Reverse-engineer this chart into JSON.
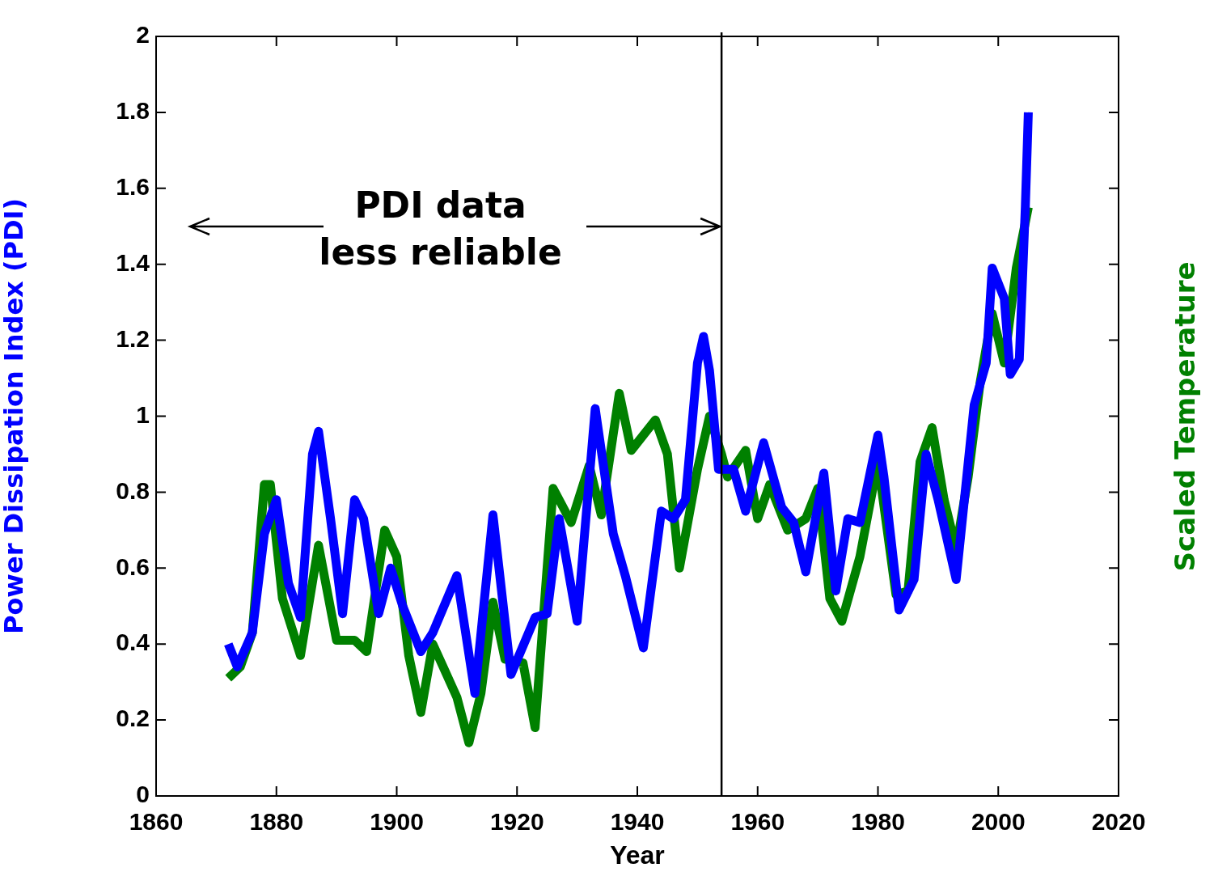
{
  "chart_data": {
    "type": "line",
    "xlabel": "Year",
    "ylabel": "Power Dissipation Index (PDI)",
    "y2label": "Scaled Temperature",
    "xlim": [
      1860,
      2020
    ],
    "xticks": [
      1860,
      1880,
      1900,
      1920,
      1940,
      1960,
      1980,
      2000,
      2020
    ],
    "ylim": [
      0,
      2
    ],
    "yticks": [
      0,
      0.2,
      0.4,
      0.6,
      0.8,
      1,
      1.2,
      1.4,
      1.6,
      1.8,
      2
    ],
    "grid": false,
    "legend": false,
    "marker": "none",
    "line_style": "solid",
    "ref_lines": [
      {
        "axis": "x",
        "value": 1954,
        "color": "#000000"
      }
    ],
    "annotations": [
      {
        "text": "PDI data\nless reliable",
        "x": 1954,
        "y": 1.5
      }
    ],
    "series": [
      {
        "color": "#0000ff",
        "x": [
          1872,
          1873.5,
          1876,
          1878,
          1880,
          1882,
          1884,
          1886,
          1887,
          1889,
          1891,
          1893,
          1894.5,
          1897,
          1899,
          1901,
          1904,
          1906,
          1910,
          1913,
          1916,
          1919,
          1923,
          1925,
          1927,
          1930,
          1933,
          1936,
          1938,
          1941,
          1944,
          1946,
          1948,
          1950,
          1951,
          1952,
          1953.5,
          1956,
          1958,
          1961,
          1964,
          1966,
          1968,
          1971,
          1973,
          1975,
          1977,
          1980,
          1981,
          1983.5,
          1986,
          1988,
          1990,
          1993,
          1996,
          1998,
          1999,
          2001,
          2002,
          2003.5,
          2004.5,
          2005
        ],
        "values": [
          0.4,
          0.34,
          0.43,
          0.69,
          0.78,
          0.56,
          0.47,
          0.9,
          0.96,
          0.73,
          0.48,
          0.78,
          0.73,
          0.48,
          0.6,
          0.5,
          0.38,
          0.43,
          0.58,
          0.27,
          0.74,
          0.32,
          0.47,
          0.48,
          0.73,
          0.46,
          1.02,
          0.69,
          0.58,
          0.39,
          0.75,
          0.73,
          0.78,
          1.14,
          1.21,
          1.12,
          0.86,
          0.86,
          0.75,
          0.93,
          0.76,
          0.72,
          0.59,
          0.85,
          0.54,
          0.73,
          0.72,
          0.95,
          0.84,
          0.49,
          0.57,
          0.9,
          0.78,
          0.57,
          1.03,
          1.14,
          1.39,
          1.31,
          1.11,
          1.15,
          1.55,
          1.8
        ]
      },
      {
        "color": "#008000",
        "x": [
          1872,
          1874,
          1876,
          1878,
          1879,
          1881,
          1884,
          1887,
          1890,
          1893,
          1895,
          1898,
          1900,
          1902,
          1904,
          1906,
          1908,
          1910,
          1912,
          1914,
          1916,
          1918,
          1921,
          1923,
          1926,
          1929,
          1932,
          1934,
          1937,
          1939,
          1943,
          1945,
          1947,
          1950,
          1952,
          1954,
          1955,
          1958,
          1960,
          1962,
          1965,
          1968,
          1970,
          1972,
          1974,
          1977,
          1980,
          1983,
          1985,
          1987,
          1989,
          1991,
          1993,
          1995,
          1997,
          1999,
          2001,
          2003,
          2005
        ],
        "values": [
          0.31,
          0.34,
          0.43,
          0.82,
          0.82,
          0.52,
          0.37,
          0.66,
          0.41,
          0.41,
          0.38,
          0.7,
          0.63,
          0.37,
          0.22,
          0.4,
          0.33,
          0.26,
          0.14,
          0.27,
          0.51,
          0.36,
          0.35,
          0.18,
          0.81,
          0.72,
          0.87,
          0.74,
          1.06,
          0.91,
          0.99,
          0.9,
          0.6,
          0.86,
          1.0,
          0.9,
          0.84,
          0.91,
          0.73,
          0.82,
          0.7,
          0.73,
          0.81,
          0.52,
          0.46,
          0.63,
          0.88,
          0.53,
          0.54,
          0.88,
          0.97,
          0.78,
          0.65,
          0.84,
          1.09,
          1.27,
          1.14,
          1.39,
          1.55
        ]
      }
    ]
  }
}
